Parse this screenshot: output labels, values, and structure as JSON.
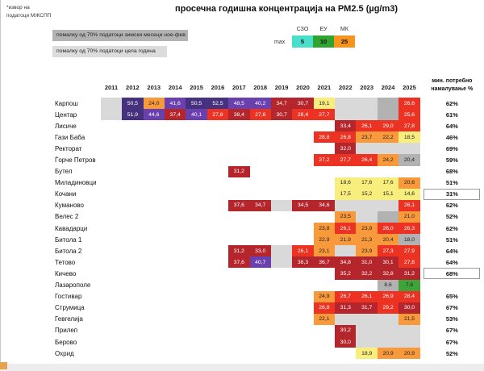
{
  "source_note": {
    "line1": "*извор на",
    "line2": "податоци МЖСПП"
  },
  "title": "просечна годишна концентрација на PM2.5 (µg/m3)",
  "data_quality_legend": {
    "winter": "помалку од 70% податоци зимски месеци ное-фев",
    "whole_year": "помалку од 70% податоци цела година"
  },
  "limits_legend": {
    "max_label": "max",
    "items": [
      {
        "label": "СЗО",
        "value": "5",
        "color": "#4adfca",
        "text": "#111111"
      },
      {
        "label": "ЕУ",
        "value": "10",
        "color": "#2fa431",
        "text": "#111111"
      },
      {
        "label": "МК",
        "value": "25",
        "color": "#f7941e",
        "text": "#111111"
      }
    ]
  },
  "reduction_header": {
    "line1": "мин. потребно",
    "line2": "намалување %"
  },
  "colors": {
    "dp": {
      "bg": "#46317e",
      "text": "#ffffff"
    },
    "p": {
      "bg": "#6a3fae",
      "text": "#ffffff"
    },
    "dr": {
      "bg": "#b4262c",
      "text": "#ffffff"
    },
    "r": {
      "bg": "#ec3323",
      "text": "#ffffff"
    },
    "o": {
      "bg": "#f8993c",
      "text": "#222222"
    },
    "y": {
      "bg": "#f8ee7e",
      "text": "#222222"
    },
    "g": {
      "bg": "#3ea43a",
      "text": "#222222"
    },
    "gl": {
      "bg": "#d9d9d9",
      "text": "#222222"
    },
    "gd": {
      "bg": "#b2b2b2",
      "text": "#222222"
    }
  },
  "chart_data": {
    "type": "heatmap",
    "title": "просечна годишна концентрација на PM2.5 (µg/m3)",
    "unit": "µg/m3",
    "x": [
      "2011",
      "2012",
      "2013",
      "2014",
      "2015",
      "2016",
      "2017",
      "2018",
      "2019",
      "2020",
      "2021",
      "2022",
      "2023",
      "2024",
      "2025"
    ],
    "color_scale_note": "green <10, yellow <20, orange 20-25, red 25-30, darkred 30-40, purple 40-50, darkpurple >=50; gray = insufficient data",
    "rows": [
      {
        "name": "Карпош",
        "min_reduction": "62%",
        "boxed": false,
        "cells": [
          ":gl",
          "50,5:dp",
          "24,0:o",
          "41,6:p",
          "50,5:dp",
          "52,5:dp",
          "48,5:p",
          "40,2:p",
          "34,7:dr",
          "30,7:dr",
          "19,1:y",
          ":gl",
          ":gl",
          ":gd",
          "26,6:r"
        ]
      },
      {
        "name": "Центар",
        "min_reduction": "61%",
        "boxed": false,
        "cells": [
          ":gl",
          "51,9:dp",
          "44,6:p",
          "37,4:dr",
          "40,1:p",
          "27,8:r",
          "38,4:dr",
          "27,8:r",
          "30,7:dr",
          "28,4:r",
          "27,7:r",
          ":gl",
          ":gl",
          ":gd",
          "25,6:r"
        ]
      },
      {
        "name": "Лисиче",
        "min_reduction": "64%",
        "boxed": false,
        "cells": [
          null,
          null,
          null,
          null,
          null,
          null,
          null,
          null,
          null,
          null,
          null,
          "33,4:dr",
          "26,1:r",
          "29,0:r",
          "27,8:r"
        ]
      },
      {
        "name": "Гази Баба",
        "min_reduction": "46%",
        "boxed": false,
        "cells": [
          null,
          null,
          null,
          null,
          null,
          null,
          null,
          null,
          null,
          null,
          "28,8:r",
          "26,8:r",
          "23,7:o",
          "22,2:o",
          "18,5:y"
        ]
      },
      {
        "name": "Ректорат",
        "min_reduction": "69%",
        "boxed": false,
        "cells": [
          null,
          null,
          null,
          null,
          null,
          null,
          null,
          null,
          null,
          null,
          null,
          "32,0:dr",
          ":gl",
          ":gl",
          ":gl"
        ]
      },
      {
        "name": "Ѓорче Петров",
        "min_reduction": "59%",
        "boxed": false,
        "cells": [
          null,
          null,
          null,
          null,
          null,
          null,
          null,
          null,
          null,
          null,
          "27,2:r",
          "27,7:r",
          "26,4:r",
          "24,2:o",
          "20,4:gd"
        ]
      },
      {
        "name": "Бутел",
        "min_reduction": "68%",
        "boxed": false,
        "cells": [
          null,
          null,
          null,
          null,
          null,
          null,
          "31,2:dr",
          null,
          null,
          null,
          null,
          null,
          null,
          null,
          null
        ]
      },
      {
        "name": "Миладиновци",
        "min_reduction": "51%",
        "boxed": false,
        "cells": [
          null,
          null,
          null,
          null,
          null,
          null,
          null,
          null,
          null,
          null,
          null,
          "18,6:y",
          "17,6:y",
          "17,6:y",
          "20,6:o"
        ]
      },
      {
        "name": "Кочани",
        "min_reduction": "31%",
        "boxed": true,
        "cells": [
          null,
          null,
          null,
          null,
          null,
          null,
          null,
          null,
          null,
          null,
          null,
          "17,5:y",
          "15,2:y",
          "15,1:y",
          "14,6:y"
        ]
      },
      {
        "name": "Куманово",
        "min_reduction": "62%",
        "boxed": false,
        "cells": [
          null,
          null,
          null,
          null,
          null,
          null,
          "37,6:dr",
          "34,7:dr",
          ":gl",
          "34,5:dr",
          "34,6:dr",
          ":gl",
          ":gl",
          ":gl",
          "26,1:r"
        ]
      },
      {
        "name": "Велес 2",
        "min_reduction": "52%",
        "boxed": false,
        "cells": [
          null,
          null,
          null,
          null,
          null,
          null,
          null,
          null,
          null,
          null,
          null,
          "23,5:o",
          ":gl",
          ":gd",
          "21,0:o"
        ]
      },
      {
        "name": "Кавадарци",
        "min_reduction": "62%",
        "boxed": false,
        "cells": [
          null,
          null,
          null,
          null,
          null,
          null,
          null,
          null,
          null,
          null,
          "23,8:o",
          "26,1:r",
          "23,9:o",
          "26,0:r",
          "26,3:r"
        ]
      },
      {
        "name": "Битола 1",
        "min_reduction": "51%",
        "boxed": false,
        "cells": [
          null,
          null,
          null,
          null,
          null,
          null,
          null,
          null,
          null,
          null,
          "22,9:o",
          "21,9:o",
          "21,3:o",
          "20,4:o",
          "18,0:gd"
        ]
      },
      {
        "name": "Битола 2",
        "min_reduction": "64%",
        "boxed": false,
        "cells": [
          null,
          null,
          null,
          null,
          null,
          null,
          "31,2:dr",
          "33,0:dr",
          ":gl",
          "26,1:r",
          "23,1:o",
          ":gl",
          "23,9:o",
          "27,3:r",
          "27,9:r"
        ]
      },
      {
        "name": "Тетово",
        "min_reduction": "64%",
        "boxed": false,
        "cells": [
          null,
          null,
          null,
          null,
          null,
          null,
          "37,6:dr",
          "40,7:p",
          ":gl",
          "38,3:dr",
          "36,7:dr",
          "34,8:dr",
          "31,0:dr",
          "30,1:dr",
          "27,8:r"
        ]
      },
      {
        "name": "Кичево",
        "min_reduction": "68%",
        "boxed": true,
        "cells": [
          null,
          null,
          null,
          null,
          null,
          null,
          null,
          null,
          null,
          null,
          null,
          "35,2:dr",
          "32,2:dr",
          "32,8:dr",
          "31,2:dr"
        ]
      },
      {
        "name": "Лазарополе",
        "min_reduction": "",
        "boxed": false,
        "cells": [
          null,
          null,
          null,
          null,
          null,
          null,
          null,
          null,
          null,
          null,
          null,
          null,
          null,
          "8,6:gd",
          "7,6:g"
        ]
      },
      {
        "name": "Гостивар",
        "min_reduction": "65%",
        "boxed": false,
        "cells": [
          null,
          null,
          null,
          null,
          null,
          null,
          null,
          null,
          null,
          null,
          "24,9:o",
          "26,7:r",
          "26,1:r",
          "26,9:r",
          "28,4:r"
        ]
      },
      {
        "name": "Струмица",
        "min_reduction": "67%",
        "boxed": false,
        "cells": [
          null,
          null,
          null,
          null,
          null,
          null,
          null,
          null,
          null,
          null,
          "26,8:r",
          "31,3:dr",
          "31,7:dr",
          "29,2:r",
          "30,0:dr"
        ]
      },
      {
        "name": "Гевгелија",
        "min_reduction": "53%",
        "boxed": false,
        "cells": [
          null,
          null,
          null,
          null,
          null,
          null,
          null,
          null,
          null,
          null,
          "22,1:o",
          ":gl",
          ":gl",
          ":gl",
          "21,5:o"
        ]
      },
      {
        "name": "Прилеп",
        "min_reduction": "67%",
        "boxed": false,
        "cells": [
          null,
          null,
          null,
          null,
          null,
          null,
          null,
          null,
          null,
          null,
          null,
          "30,2:dr",
          ":gl",
          ":gl",
          ":gl"
        ]
      },
      {
        "name": "Берово",
        "min_reduction": "67%",
        "boxed": false,
        "cells": [
          null,
          null,
          null,
          null,
          null,
          null,
          null,
          null,
          null,
          null,
          null,
          "30,0:dr",
          ":gl",
          ":gl",
          ":gl"
        ]
      },
      {
        "name": "Охрид",
        "min_reduction": "52%",
        "boxed": false,
        "cells": [
          null,
          null,
          null,
          null,
          null,
          null,
          null,
          null,
          null,
          null,
          null,
          null,
          "18,9:y",
          "20,9:o",
          "20,9:o"
        ]
      }
    ]
  }
}
